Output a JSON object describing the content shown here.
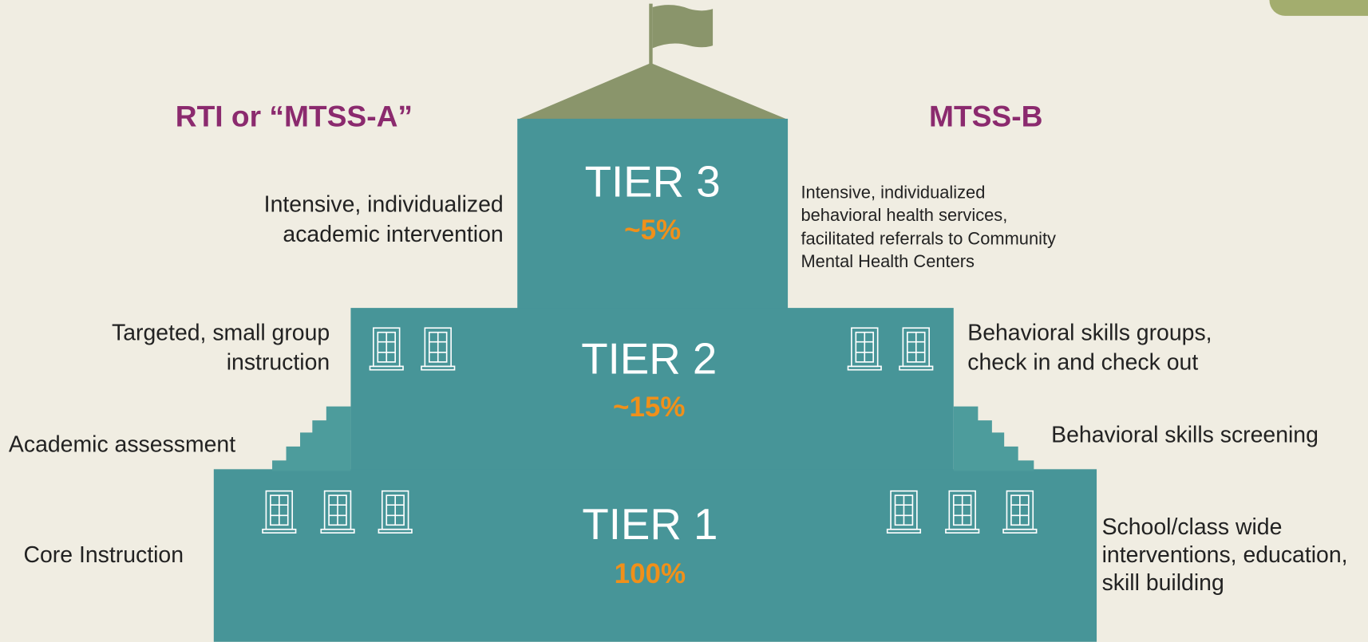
{
  "left_title": "RTI or “MTSS-A”",
  "right_title": "MTSS-B",
  "tiers": [
    {
      "name": "TIER 3",
      "percent": "~5%"
    },
    {
      "name": "TIER 2",
      "percent": "~15%"
    },
    {
      "name": "TIER 1",
      "percent": "100%"
    }
  ],
  "left_items": [
    {
      "lines": [
        "Intensive, individualized",
        "academic intervention"
      ]
    },
    {
      "lines": [
        "Targeted, small group",
        "instruction"
      ]
    },
    {
      "lines": [
        "Academic assessment"
      ]
    },
    {
      "lines": [
        "Core Instruction"
      ]
    }
  ],
  "right_items": [
    {
      "lines": [
        "Intensive, individualized",
        "behavioral health services,",
        "facilitated referrals to Community",
        "Mental Health Centers"
      ]
    },
    {
      "lines": [
        "Behavioral skills groups,",
        "check in and check out"
      ]
    },
    {
      "lines": [
        "Behavioral skills screening"
      ]
    },
    {
      "lines": [
        "School/class wide",
        "interventions, education,",
        "skill building"
      ]
    }
  ]
}
